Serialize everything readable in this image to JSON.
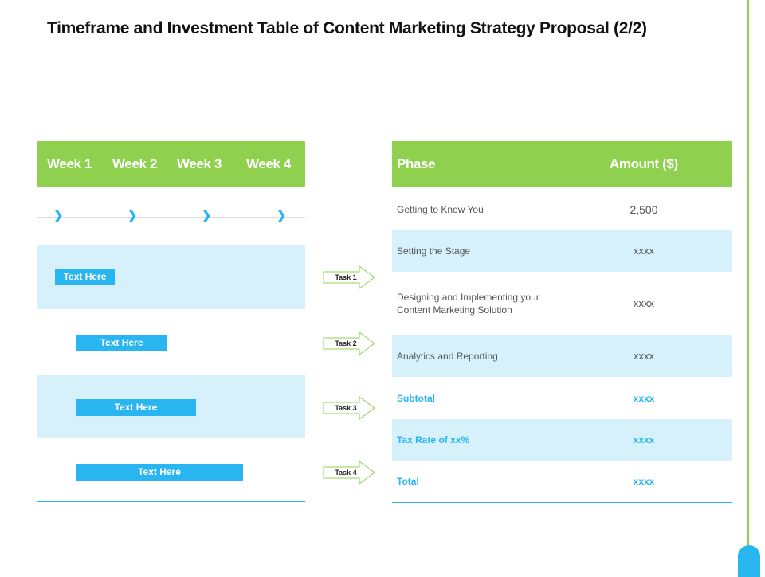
{
  "title": "Timeframe and Investment Table of Content  Marketing  Strategy Proposal (2/2)",
  "timeline": {
    "weeks": [
      "Week 1",
      "Week 2",
      "Week 3",
      "Week 4"
    ],
    "bars": [
      "Text Here",
      "Text Here",
      "Text Here",
      "Text Here"
    ],
    "tasks": [
      "Task 1",
      "Task 2",
      "Task 3",
      "Task 4"
    ]
  },
  "table": {
    "headers": {
      "phase": "Phase",
      "amount": "Amount ($)"
    },
    "rows": [
      {
        "phase": "Getting to Know You",
        "amount": "2,500"
      },
      {
        "phase": "Setting the Stage",
        "amount": "xxxx"
      },
      {
        "phase": "Designing and Implementing your Content Marketing Solution",
        "amount": "xxxx"
      },
      {
        "phase": "Analytics and Reporting",
        "amount": "xxxx"
      }
    ],
    "summary": [
      {
        "label": "Subtotal",
        "amount": "xxxx"
      },
      {
        "label": "Tax Rate of xx%",
        "amount": "xxxx"
      },
      {
        "label": "Total",
        "amount": "xxxx"
      }
    ]
  },
  "colors": {
    "green": "#8fd14f",
    "blue": "#29b6f0",
    "light_blue": "#d6f1fb"
  }
}
